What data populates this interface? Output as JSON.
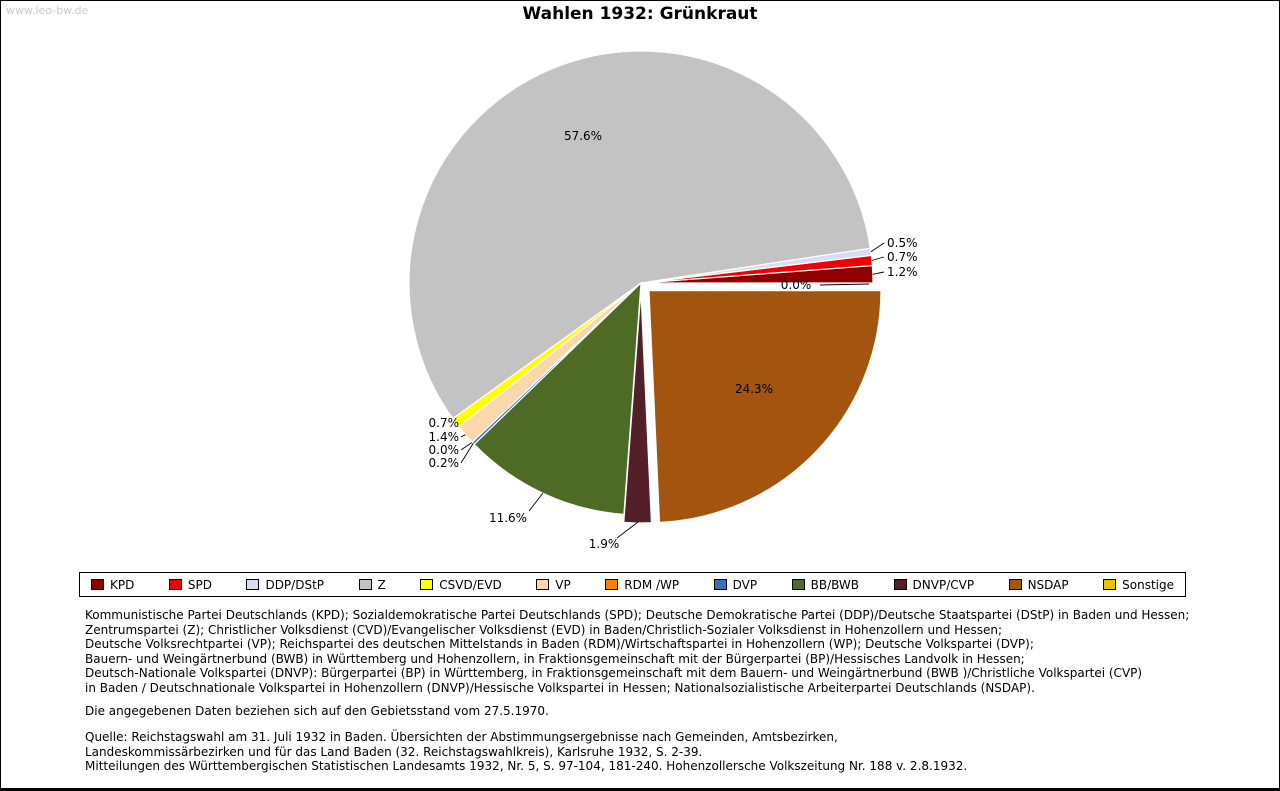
{
  "watermark": "www.leo-bw.de",
  "title": "Wahlen 1932: Grünkraut",
  "chart_data": {
    "type": "pie",
    "title": "Wahlen 1932: Grünkraut",
    "value_unit": "percent",
    "direction": "counterclockwise",
    "start_angle_deg": 0,
    "legend_position": "bottom",
    "slices": [
      {
        "party": "KPD",
        "percent": 1.2,
        "color": "#900000"
      },
      {
        "party": "SPD",
        "percent": 0.7,
        "color": "#f00000"
      },
      {
        "party": "DDP/DStP",
        "percent": 0.5,
        "color": "#d8dcf2"
      },
      {
        "party": "Z",
        "percent": 57.6,
        "color": "#c3c3c3"
      },
      {
        "party": "CSVD/EVD",
        "percent": 0.7,
        "color": "#ffff00"
      },
      {
        "party": "VP",
        "percent": 1.4,
        "color": "#fbd7ac"
      },
      {
        "party": "RDM /WP",
        "percent": 0.0,
        "color": "#ff8000"
      },
      {
        "party": "DVP",
        "percent": 0.2,
        "color": "#3d6ec0"
      },
      {
        "party": "BB/BWB",
        "percent": 11.6,
        "color": "#4e6b26"
      },
      {
        "party": "DNVP/CVP",
        "percent": 1.9,
        "color": "#541f29"
      },
      {
        "party": "NSDAP",
        "percent": 24.3,
        "color": "#a3540e"
      },
      {
        "party": "Sonstige",
        "percent": 0.0,
        "color": "#efc000"
      }
    ]
  },
  "notes": {
    "definitions_lines": [
      "Kommunistische Partei Deutschlands (KPD); Sozialdemokratische Partei Deutschlands (SPD); Deutsche Demokratische Partei (DDP)/Deutsche Staatspartei (DStP) in Baden und Hessen;",
      "Zentrumspartei (Z); Christlicher Volksdienst (CVD)/Evangelischer Volksdienst (EVD) in Baden/Christlich-Sozialer Volksdienst in Hohenzollern und Hessen;",
      "Deutsche Volksrechtpartei (VP); Reichspartei des deutschen Mittelstands in Baden (RDM)/Wirtschaftspartei in Hohenzollern (WP); Deutsche Volkspartei (DVP);",
      "Bauern- und Weingärtnerbund (BWB) in Württemberg und Hohenzollern, in Fraktionsgemeinschaft mit der Bürgerpartei (BP)/Hessisches Landvolk in Hessen;",
      "Deutsch-Nationale Volkspartei (DNVP): Bürgerpartei (BP) in Württemberg, in Fraktionsgemeinschaft mit dem Bauern- und Weingärtnerbund (BWB )/Christliche Volkspartei (CVP)",
      "in Baden / Deutschnationale Volkspartei in Hohenzollern (DNVP)/Hessische Volkspartei in Hessen; Nationalsozialistische Arbeiterpartei Deutschlands (NSDAP)."
    ],
    "territorial_note": "Die angegebenen Daten beziehen sich auf den Gebietsstand vom 27.5.1970.",
    "source_lines": [
      "Quelle: Reichstagswahl am 31. Juli 1932 in Baden. Übersichten der Abstimmungsergebnisse nach Gemeinden, Amtsbezirken,",
      "Landeskommissärbezirken und für das Land Baden (32. Reichstagswahlkreis), Karlsruhe 1932, S. 2-39.",
      "Mitteilungen des Württembergischen Statistischen Landesamts 1932, Nr. 5, S. 97-104, 181-240. Hohenzollersche Volkszeitung Nr. 188 v. 2.8.1932."
    ]
  }
}
